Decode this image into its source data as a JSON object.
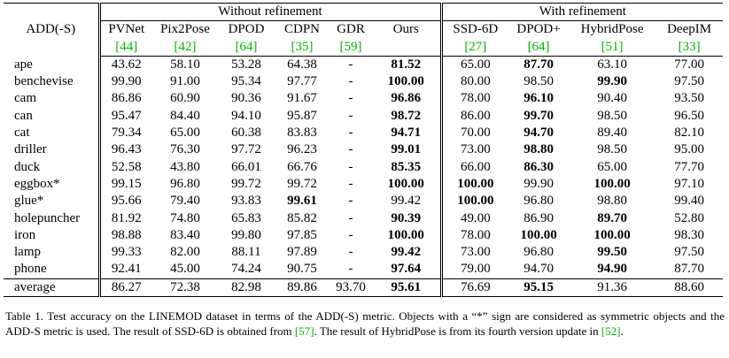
{
  "table": {
    "corner": "ADD(-S)",
    "groups": [
      {
        "title": "Without refinement",
        "span": 6
      },
      {
        "title": "With refinement",
        "span": 4
      }
    ],
    "methods": [
      {
        "name": "PVNet",
        "ref": "[44]"
      },
      {
        "name": "Pix2Pose",
        "ref": "[42]"
      },
      {
        "name": "DPOD",
        "ref": "[64]"
      },
      {
        "name": "CDPN",
        "ref": "[35]"
      },
      {
        "name": "GDR",
        "ref": "[59]"
      },
      {
        "name": "Ours"
      },
      {
        "name": "SSD-6D",
        "ref": "[27]"
      },
      {
        "name": "DPOD+",
        "ref": "[64]"
      },
      {
        "name": "HybridPose",
        "ref": "[51]"
      },
      {
        "name": "DeepIM",
        "ref": "[33]"
      }
    ],
    "rows": [
      {
        "name": "ape",
        "cells": [
          "43.62",
          "58.10",
          "53.28",
          "64.38",
          "-",
          "81.52",
          "65.00",
          "87.70",
          "63.10",
          "77.00"
        ],
        "bold": [
          5,
          7
        ]
      },
      {
        "name": "benchevise",
        "cells": [
          "99.90",
          "91.00",
          "95.34",
          "97.77",
          "-",
          "100.00",
          "80.00",
          "98.50",
          "99.90",
          "97.50"
        ],
        "bold": [
          5,
          8
        ]
      },
      {
        "name": "cam",
        "cells": [
          "86.86",
          "60.90",
          "90.36",
          "91.67",
          "-",
          "96.86",
          "78.00",
          "96.10",
          "90.40",
          "93.50"
        ],
        "bold": [
          5,
          7
        ]
      },
      {
        "name": "can",
        "cells": [
          "95.47",
          "84.40",
          "94.10",
          "95.87",
          "-",
          "98.72",
          "86.00",
          "99.70",
          "98.50",
          "96.50"
        ],
        "bold": [
          5,
          7
        ]
      },
      {
        "name": "cat",
        "cells": [
          "79.34",
          "65.00",
          "60.38",
          "83.83",
          "-",
          "94.71",
          "70.00",
          "94.70",
          "89.40",
          "82.10"
        ],
        "bold": [
          5,
          7
        ]
      },
      {
        "name": "driller",
        "cells": [
          "96.43",
          "76.30",
          "97.72",
          "96.23",
          "-",
          "99.01",
          "73.00",
          "98.80",
          "98.50",
          "95.00"
        ],
        "bold": [
          5,
          7
        ]
      },
      {
        "name": "duck",
        "cells": [
          "52.58",
          "43.80",
          "66.01",
          "66.76",
          "-",
          "85.35",
          "66.00",
          "86.30",
          "65.00",
          "77.70"
        ],
        "bold": [
          5,
          7
        ]
      },
      {
        "name": "eggbox*",
        "cells": [
          "99.15",
          "96.80",
          "99.72",
          "99.72",
          "-",
          "100.00",
          "100.00",
          "99.90",
          "100.00",
          "97.10"
        ],
        "bold": [
          5,
          6,
          8
        ]
      },
      {
        "name": "glue*",
        "cells": [
          "95.66",
          "79.40",
          "93.83",
          "99.61",
          "-",
          "99.42",
          "100.00",
          "96.80",
          "98.80",
          "99.40"
        ],
        "bold": [
          3,
          6
        ]
      },
      {
        "name": "holepuncher",
        "cells": [
          "81.92",
          "74.80",
          "65.83",
          "85.82",
          "-",
          "90.39",
          "49.00",
          "86.90",
          "89.70",
          "52.80"
        ],
        "bold": [
          5,
          8
        ]
      },
      {
        "name": "iron",
        "cells": [
          "98.88",
          "83.40",
          "99.80",
          "97.85",
          "-",
          "100.00",
          "78.00",
          "100.00",
          "100.00",
          "98.30"
        ],
        "bold": [
          5,
          7,
          8
        ]
      },
      {
        "name": "lamp",
        "cells": [
          "99.33",
          "82.00",
          "88.11",
          "97.89",
          "-",
          "99.42",
          "73.00",
          "96.80",
          "99.50",
          "97.50"
        ],
        "bold": [
          5,
          8
        ]
      },
      {
        "name": "phone",
        "cells": [
          "92.41",
          "45.00",
          "74.24",
          "90.75",
          "-",
          "97.64",
          "79.00",
          "94.70",
          "94.90",
          "87.70"
        ],
        "bold": [
          5,
          8
        ]
      }
    ],
    "average": {
      "name": "average",
      "cells": [
        "86.27",
        "72.38",
        "82.98",
        "89.86",
        "93.70",
        "95.61",
        "76.69",
        "95.15",
        "91.36",
        "88.60"
      ],
      "bold": [
        5,
        7
      ]
    }
  },
  "caption": [
    "Table 1.  Test accuracy on the LINEMOD dataset in terms of the ADD(-S) metric. Objects with a “*” sign are considered as symmetric objects and the ADD-S metric is used. The result of SSD-6D is obtained from ",
    "[57]",
    ". The result of HybridPose is from its fourth version update in ",
    "[52]",
    "."
  ]
}
